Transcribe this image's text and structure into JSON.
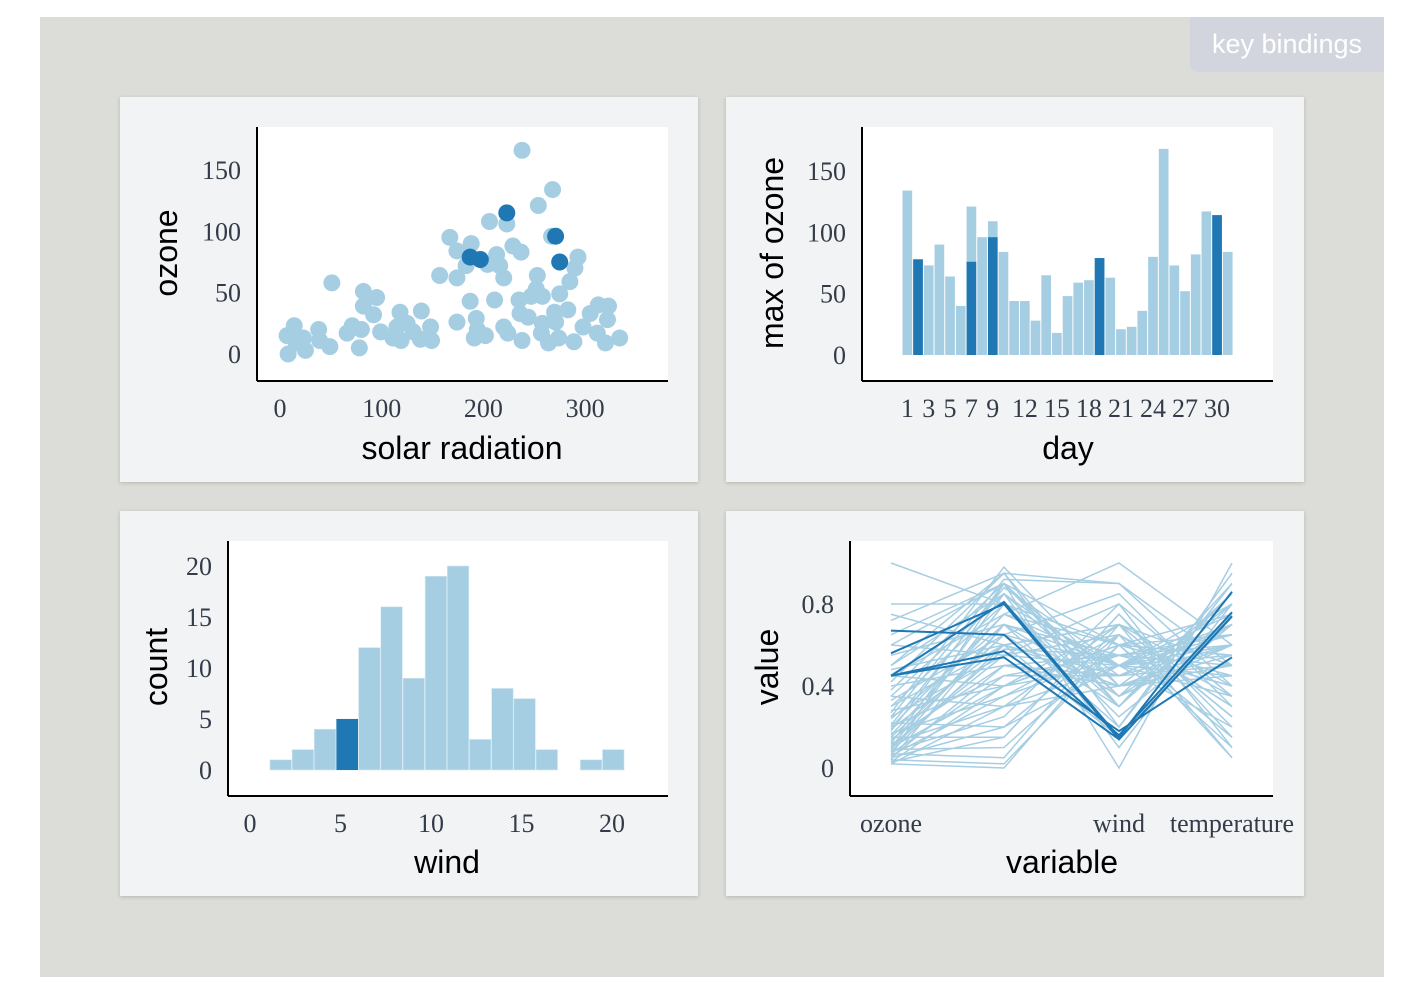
{
  "header": {
    "key_bindings_label": "key bindings"
  },
  "colors": {
    "base": "#a6cee3",
    "selected": "#1f78b4"
  },
  "chart_data": [
    {
      "type": "scatter",
      "xlabel": "solar radiation",
      "ylabel": "ozone",
      "xticks": [
        "0",
        "100",
        "200",
        "300"
      ],
      "yticks": [
        "0",
        "50",
        "100",
        "150"
      ],
      "xlim": [
        -20,
        384
      ],
      "ylim": [
        -22,
        185
      ],
      "points": [
        [
          238,
          166
        ],
        [
          268,
          134
        ],
        [
          254,
          121
        ],
        [
          223,
          106
        ],
        [
          206,
          108
        ],
        [
          267,
          96
        ],
        [
          167,
          95
        ],
        [
          188,
          90
        ],
        [
          174,
          84
        ],
        [
          213,
          81
        ],
        [
          229,
          88
        ],
        [
          237,
          83
        ],
        [
          293,
          79
        ],
        [
          290,
          70
        ],
        [
          285,
          59
        ],
        [
          253,
          64
        ],
        [
          220,
          62
        ],
        [
          216,
          72
        ],
        [
          183,
          72
        ],
        [
          204,
          73
        ],
        [
          157,
          64
        ],
        [
          174,
          62
        ],
        [
          51,
          58
        ],
        [
          82,
          51
        ],
        [
          95,
          46
        ],
        [
          82,
          39
        ],
        [
          92,
          32
        ],
        [
          187,
          43
        ],
        [
          211,
          44
        ],
        [
          235,
          44
        ],
        [
          252,
          53
        ],
        [
          258,
          47
        ],
        [
          275,
          49
        ],
        [
          247,
          47
        ],
        [
          283,
          36
        ],
        [
          270,
          34
        ],
        [
          271,
          26
        ],
        [
          313,
          40
        ],
        [
          323,
          39
        ],
        [
          305,
          33
        ],
        [
          322,
          28
        ],
        [
          298,
          22
        ],
        [
          312,
          17
        ],
        [
          320,
          9
        ],
        [
          334,
          13
        ],
        [
          289,
          10
        ],
        [
          274,
          13
        ],
        [
          264,
          9
        ],
        [
          257,
          17
        ],
        [
          258,
          25
        ],
        [
          244,
          30
        ],
        [
          236,
          33
        ],
        [
          238,
          11
        ],
        [
          224,
          17
        ],
        [
          220,
          22
        ],
        [
          202,
          15
        ],
        [
          191,
          13
        ],
        [
          193,
          29
        ],
        [
          194,
          20
        ],
        [
          174,
          26
        ],
        [
          148,
          22
        ],
        [
          149,
          11
        ],
        [
          138,
          12
        ],
        [
          139,
          35
        ],
        [
          131,
          18
        ],
        [
          118,
          34
        ],
        [
          125,
          25
        ],
        [
          115,
          22
        ],
        [
          119,
          11
        ],
        [
          111,
          13
        ],
        [
          99,
          18
        ],
        [
          80,
          20
        ],
        [
          71,
          23
        ],
        [
          66,
          17
        ],
        [
          78,
          5
        ],
        [
          49,
          6
        ],
        [
          39,
          11
        ],
        [
          38,
          20
        ],
        [
          25,
          3
        ],
        [
          14,
          23
        ],
        [
          7,
          15
        ],
        [
          8,
          0
        ],
        [
          23,
          13
        ],
        [
          16,
          9
        ]
      ],
      "selected_points": [
        [
          223,
          115
        ],
        [
          271,
          96
        ],
        [
          187,
          79
        ],
        [
          197,
          77
        ],
        [
          275,
          75
        ]
      ]
    },
    {
      "type": "bar",
      "xlabel": "day",
      "ylabel": "max of ozone",
      "categories": [
        1,
        2,
        3,
        4,
        5,
        6,
        7,
        8,
        9,
        10,
        11,
        12,
        13,
        14,
        15,
        16,
        17,
        18,
        19,
        20,
        21,
        22,
        23,
        24,
        25,
        26,
        27,
        28,
        29,
        30,
        31
      ],
      "xticks": [
        "1",
        "3",
        "5",
        "7",
        "9",
        "12",
        "15",
        "18",
        "21",
        "24",
        "27",
        "30"
      ],
      "yticks": [
        "0",
        "50",
        "100",
        "150"
      ],
      "ylim": [
        0,
        185
      ],
      "values": [
        134,
        78,
        73,
        90,
        64,
        40,
        121,
        96,
        109,
        84,
        44,
        44,
        28,
        65,
        18,
        48,
        59,
        61,
        79,
        63,
        21,
        23,
        36,
        80,
        168,
        73,
        52,
        82,
        117,
        114,
        84
      ],
      "selected_values": [
        0,
        78,
        0,
        0,
        0,
        0,
        76,
        0,
        96,
        0,
        0,
        0,
        0,
        0,
        0,
        0,
        0,
        0,
        79,
        0,
        0,
        0,
        0,
        0,
        0,
        0,
        0,
        0,
        0,
        114,
        0
      ]
    },
    {
      "type": "bar",
      "subtype": "histogram",
      "xlabel": "wind",
      "ylabel": "count",
      "xticks": [
        "0",
        "5",
        "10",
        "15",
        "20"
      ],
      "yticks": [
        "0",
        "5",
        "10",
        "15",
        "20"
      ],
      "bin_start": 1.1,
      "bin_width": 1.225,
      "values": [
        1,
        2,
        4,
        5,
        12,
        16,
        9,
        19,
        20,
        3,
        8,
        7,
        2,
        0,
        1,
        2
      ],
      "selected_values": [
        0,
        0,
        0,
        5,
        0,
        0,
        0,
        0,
        0,
        0,
        0,
        0,
        0,
        0,
        0,
        0
      ],
      "ylim": [
        0,
        22
      ]
    },
    {
      "type": "line",
      "subtype": "parallel-coordinates",
      "xlabel": "variable",
      "ylabel": "value",
      "axes": [
        "ozone",
        "",
        "wind",
        "temperature"
      ],
      "yticks": [
        "0",
        "0.4",
        "0.8"
      ],
      "ylim": [
        0,
        1
      ],
      "lines": [
        [
          1.0,
          0.8,
          0.5,
          0.6
        ],
        [
          0.8,
          0.8,
          0.6,
          0.55
        ],
        [
          0.75,
          0.6,
          0.7,
          0.5
        ],
        [
          0.72,
          0.95,
          0.3,
          0.9
        ],
        [
          0.6,
          0.9,
          0.4,
          0.8
        ],
        [
          0.55,
          0.7,
          0.2,
          0.95
        ],
        [
          0.5,
          0.85,
          0.35,
          0.85
        ],
        [
          0.48,
          0.6,
          0.45,
          0.7
        ],
        [
          0.45,
          0.75,
          1.0,
          0.6
        ],
        [
          0.42,
          0.95,
          0.9,
          0.5
        ],
        [
          0.4,
          0.5,
          0.55,
          0.65
        ],
        [
          0.38,
          0.9,
          0.6,
          0.75
        ],
        [
          0.35,
          0.3,
          0.7,
          0.4
        ],
        [
          0.33,
          0.65,
          0.5,
          0.8
        ],
        [
          0.3,
          0.8,
          0.25,
          0.7
        ],
        [
          0.28,
          0.4,
          0.6,
          0.45
        ],
        [
          0.27,
          0.98,
          0.4,
          0.55
        ],
        [
          0.25,
          0.55,
          0.8,
          0.35
        ],
        [
          0.24,
          0.7,
          0.35,
          0.6
        ],
        [
          0.22,
          0.2,
          0.65,
          0.3
        ],
        [
          0.21,
          0.88,
          0.5,
          0.75
        ],
        [
          0.2,
          0.45,
          0.45,
          0.5
        ],
        [
          0.19,
          0.6,
          0.7,
          0.25
        ],
        [
          0.18,
          0.9,
          0.3,
          0.85
        ],
        [
          0.17,
          0.35,
          0.55,
          0.4
        ],
        [
          0.16,
          0.75,
          0.6,
          0.65
        ],
        [
          0.15,
          0.15,
          0.75,
          0.2
        ],
        [
          0.14,
          0.5,
          0.4,
          0.6
        ],
        [
          0.13,
          0.65,
          0.85,
          0.3
        ],
        [
          0.12,
          0.85,
          0.45,
          0.7
        ],
        [
          0.12,
          0.3,
          0.5,
          0.45
        ],
        [
          0.11,
          0.55,
          0.65,
          0.35
        ],
        [
          0.1,
          0.8,
          0.3,
          0.8
        ],
        [
          0.1,
          0.4,
          0.7,
          0.25
        ],
        [
          0.09,
          0.1,
          0.6,
          0.15
        ],
        [
          0.09,
          0.7,
          0.5,
          0.55
        ],
        [
          0.08,
          0.25,
          0.8,
          0.1
        ],
        [
          0.08,
          0.6,
          0.4,
          0.5
        ],
        [
          0.07,
          0.45,
          0.55,
          0.4
        ],
        [
          0.07,
          0.05,
          0.7,
          0.05
        ],
        [
          0.06,
          0.9,
          0.35,
          0.7
        ],
        [
          0.06,
          0.35,
          0.65,
          0.3
        ],
        [
          0.05,
          0.2,
          0.5,
          0.2
        ],
        [
          0.05,
          0.5,
          0.45,
          0.6
        ],
        [
          0.04,
          0.02,
          0.6,
          0.1
        ],
        [
          0.04,
          0.7,
          0.55,
          0.5
        ],
        [
          0.03,
          0.15,
          0.75,
          0.15
        ],
        [
          0.03,
          0.4,
          0.5,
          0.35
        ],
        [
          0.02,
          0.0,
          0.65,
          0.05
        ],
        [
          0.02,
          0.3,
          0.4,
          0.45
        ],
        [
          0.6,
          0.55,
          0.5,
          0.65
        ],
        [
          0.65,
          0.9,
          0.0,
          1.0
        ],
        [
          0.5,
          0.95,
          0.2,
          0.9
        ],
        [
          0.35,
          0.85,
          0.1,
          0.8
        ],
        [
          0.3,
          0.6,
          0.15,
          0.75
        ],
        [
          0.25,
          0.92,
          0.9,
          0.4
        ],
        [
          0.45,
          0.4,
          0.6,
          0.55
        ],
        [
          0.15,
          0.65,
          0.3,
          0.85
        ],
        [
          0.2,
          0.75,
          0.5,
          0.7
        ],
        [
          0.1,
          0.58,
          0.55,
          0.6
        ]
      ],
      "selected_lines": [
        [
          0.45,
          0.81,
          0.15,
          0.86
        ],
        [
          0.67,
          0.65,
          0.16,
          0.76
        ],
        [
          0.56,
          0.8,
          0.14,
          0.74
        ],
        [
          0.45,
          0.57,
          0.18,
          0.54
        ],
        [
          0.45,
          0.54,
          0.14,
          0.74
        ]
      ]
    }
  ]
}
